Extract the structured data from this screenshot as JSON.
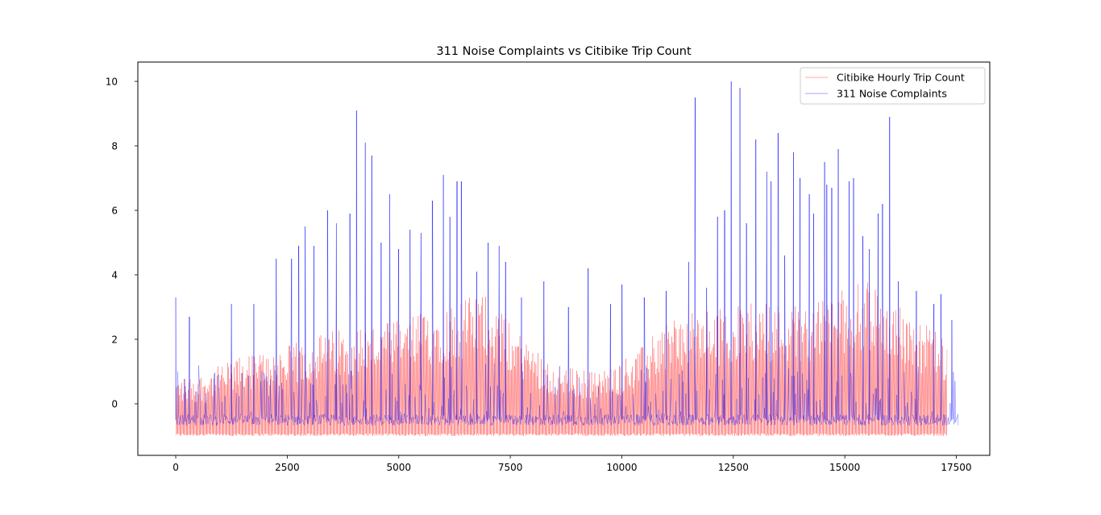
{
  "chart_data": {
    "type": "line",
    "title": "311 Noise Complaints vs Citibike Trip Count",
    "xlabel": "",
    "ylabel": "",
    "xlim": [
      -850,
      18250
    ],
    "ylim": [
      -1.6,
      10.6
    ],
    "x_ticks": [
      0,
      2500,
      5000,
      7500,
      10000,
      12500,
      15000,
      17500
    ],
    "x_tick_labels": [
      "0",
      "2500",
      "5000",
      "7500",
      "10000",
      "12500",
      "15000",
      "17500"
    ],
    "y_ticks": [
      0,
      2,
      4,
      6,
      8,
      10
    ],
    "y_tick_labels": [
      "0",
      "2",
      "4",
      "6",
      "8",
      "10"
    ],
    "grid": false,
    "legend_position": "upper right",
    "series": [
      {
        "name": "Citibike Hourly Trip Count",
        "color": "#ff0000",
        "x_range": [
          0,
          17300
        ],
        "baseline": -1.0,
        "envelope_x": [
          0,
          500,
          1500,
          2500,
          3500,
          5000,
          6000,
          6500,
          7000,
          7500,
          8500,
          9500,
          10500,
          11000,
          12000,
          13000,
          14000,
          15000,
          15500,
          16000,
          16500,
          17000,
          17300
        ],
        "envelope_peak": [
          0.8,
          0.9,
          1.5,
          1.8,
          2.3,
          2.6,
          3.1,
          3.3,
          3.5,
          2.5,
          1.2,
          1.0,
          1.8,
          2.7,
          2.9,
          3.2,
          3.1,
          3.6,
          3.8,
          3.3,
          2.7,
          2.3,
          1.9
        ]
      },
      {
        "name": "311 Noise Complaints",
        "color": "#0000ff",
        "x_range": [
          0,
          17550
        ],
        "baseline": -0.5,
        "spikes": [
          {
            "x": 0,
            "y": 3.3
          },
          {
            "x": 300,
            "y": 2.7
          },
          {
            "x": 1250,
            "y": 3.1
          },
          {
            "x": 1750,
            "y": 3.1
          },
          {
            "x": 2250,
            "y": 4.5
          },
          {
            "x": 2600,
            "y": 4.5
          },
          {
            "x": 2750,
            "y": 4.9
          },
          {
            "x": 2900,
            "y": 5.5
          },
          {
            "x": 3100,
            "y": 4.9
          },
          {
            "x": 3400,
            "y": 6.0
          },
          {
            "x": 3600,
            "y": 5.6
          },
          {
            "x": 3900,
            "y": 5.9
          },
          {
            "x": 4050,
            "y": 9.1
          },
          {
            "x": 4250,
            "y": 8.1
          },
          {
            "x": 4400,
            "y": 7.7
          },
          {
            "x": 4600,
            "y": 5.0
          },
          {
            "x": 4800,
            "y": 6.5
          },
          {
            "x": 5000,
            "y": 4.8
          },
          {
            "x": 5250,
            "y": 5.4
          },
          {
            "x": 5500,
            "y": 5.3
          },
          {
            "x": 5750,
            "y": 6.3
          },
          {
            "x": 6000,
            "y": 7.1
          },
          {
            "x": 6150,
            "y": 5.8
          },
          {
            "x": 6300,
            "y": 6.9
          },
          {
            "x": 6400,
            "y": 6.9
          },
          {
            "x": 6750,
            "y": 4.1
          },
          {
            "x": 7000,
            "y": 5.0
          },
          {
            "x": 7250,
            "y": 4.9
          },
          {
            "x": 7400,
            "y": 4.4
          },
          {
            "x": 7750,
            "y": 3.3
          },
          {
            "x": 8250,
            "y": 3.8
          },
          {
            "x": 8800,
            "y": 3.0
          },
          {
            "x": 9250,
            "y": 4.2
          },
          {
            "x": 9750,
            "y": 3.1
          },
          {
            "x": 10000,
            "y": 3.7
          },
          {
            "x": 10500,
            "y": 3.3
          },
          {
            "x": 11000,
            "y": 3.5
          },
          {
            "x": 11500,
            "y": 4.4
          },
          {
            "x": 11650,
            "y": 9.5
          },
          {
            "x": 11900,
            "y": 3.6
          },
          {
            "x": 12150,
            "y": 5.8
          },
          {
            "x": 12300,
            "y": 6.0
          },
          {
            "x": 12450,
            "y": 10.0
          },
          {
            "x": 12650,
            "y": 9.8
          },
          {
            "x": 12800,
            "y": 5.6
          },
          {
            "x": 13000,
            "y": 8.2
          },
          {
            "x": 13250,
            "y": 7.2
          },
          {
            "x": 13350,
            "y": 6.9
          },
          {
            "x": 13500,
            "y": 8.4
          },
          {
            "x": 13650,
            "y": 4.6
          },
          {
            "x": 13850,
            "y": 7.8
          },
          {
            "x": 14000,
            "y": 7.0
          },
          {
            "x": 14200,
            "y": 6.5
          },
          {
            "x": 14300,
            "y": 5.9
          },
          {
            "x": 14550,
            "y": 7.5
          },
          {
            "x": 14600,
            "y": 6.8
          },
          {
            "x": 14700,
            "y": 6.7
          },
          {
            "x": 14850,
            "y": 7.9
          },
          {
            "x": 15100,
            "y": 6.9
          },
          {
            "x": 15200,
            "y": 7.0
          },
          {
            "x": 15400,
            "y": 5.2
          },
          {
            "x": 15550,
            "y": 4.8
          },
          {
            "x": 15750,
            "y": 5.9
          },
          {
            "x": 15850,
            "y": 6.2
          },
          {
            "x": 16000,
            "y": 8.9
          },
          {
            "x": 16200,
            "y": 3.8
          },
          {
            "x": 16600,
            "y": 3.5
          },
          {
            "x": 17000,
            "y": 3.1
          },
          {
            "x": 17150,
            "y": 3.4
          },
          {
            "x": 17400,
            "y": 2.6
          }
        ]
      }
    ]
  }
}
